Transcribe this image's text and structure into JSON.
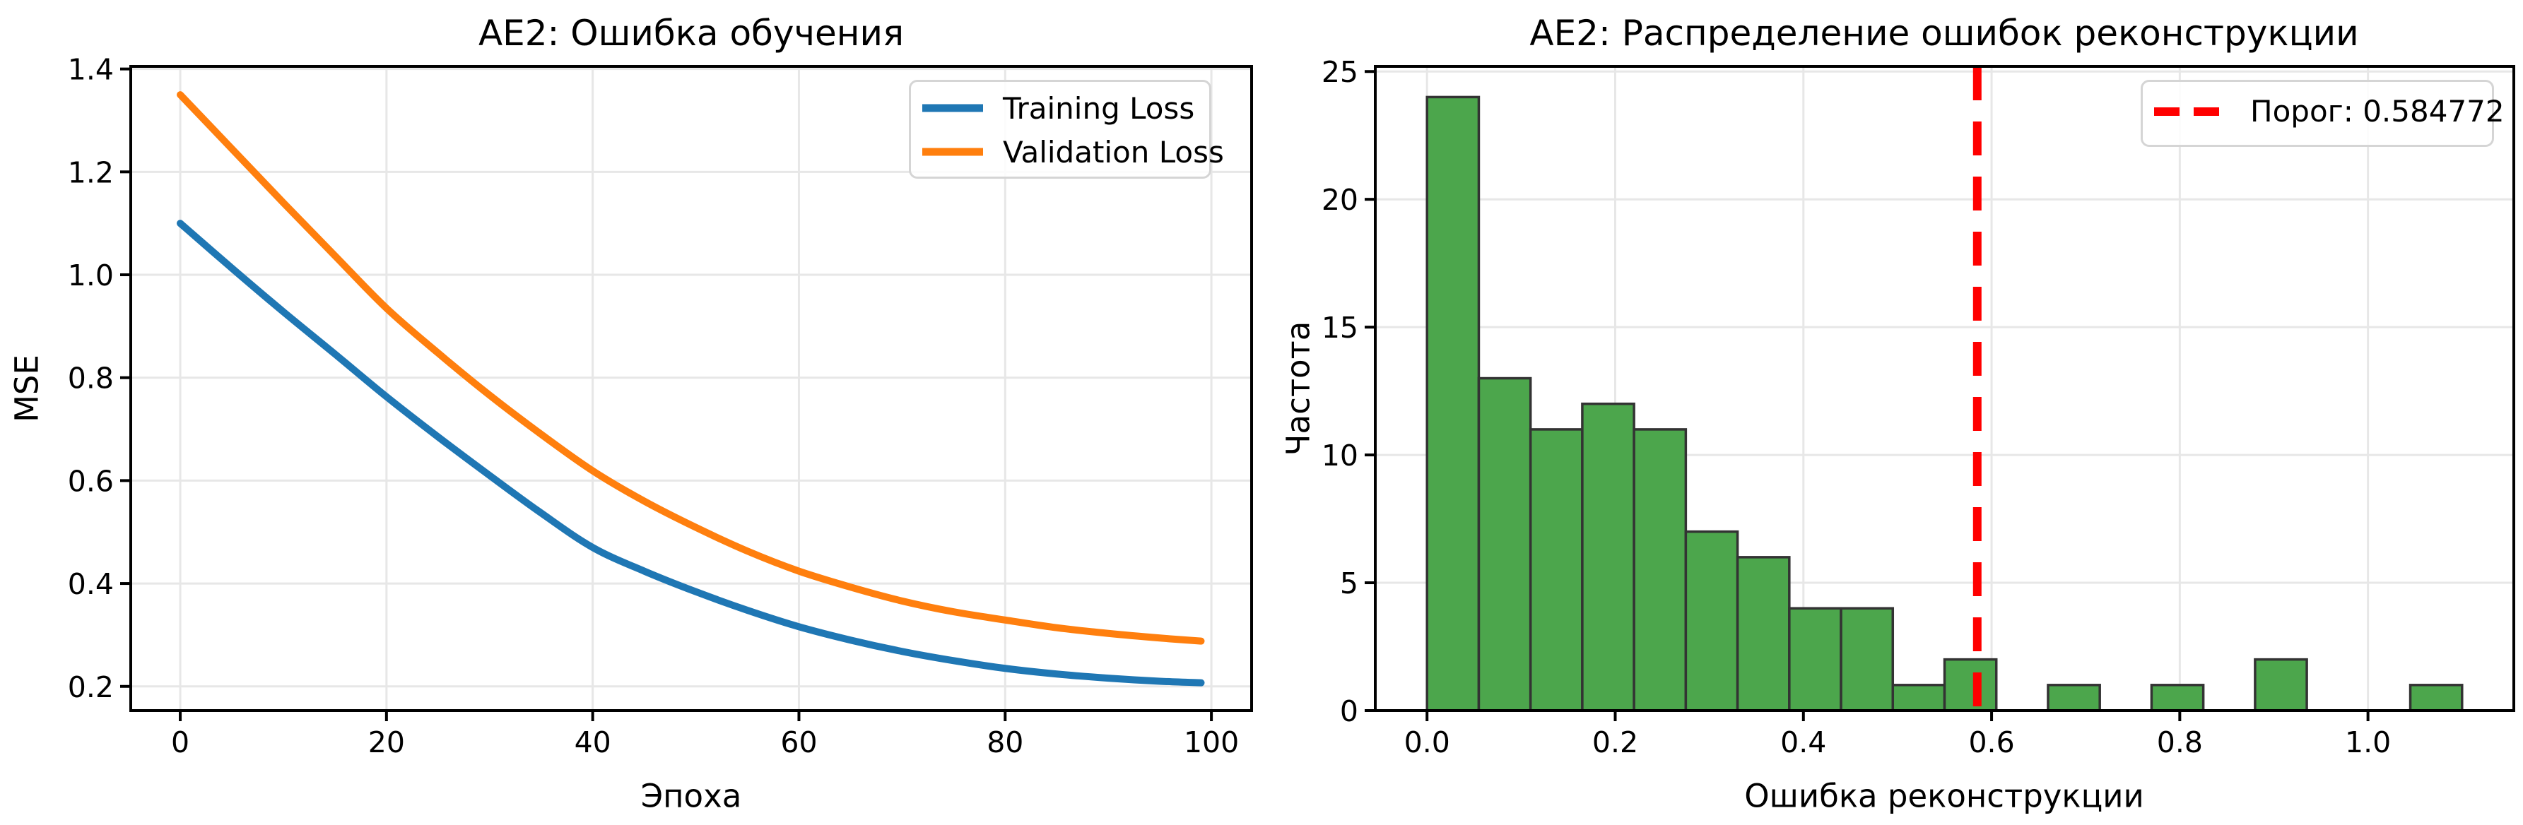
{
  "page": {
    "background": "#ffffff"
  },
  "styles": {
    "grid_color": "#e7e7e7",
    "spine_color": "#000000",
    "tick_color": "#000000",
    "text_color": "#000000",
    "legend_border": "#d5d5d5",
    "legend_bg": "#ffffff"
  },
  "chart_data": [
    {
      "type": "line",
      "title": "AE2: Ошибка обучения",
      "xlabel": "Эпоха",
      "ylabel": "MSE",
      "xlim": [
        -4.8,
        103.9
      ],
      "ylim": [
        0.153,
        1.405
      ],
      "xticks": [
        0,
        20,
        40,
        60,
        80,
        100
      ],
      "xtick_decimals": 0,
      "yticks": [
        0.2,
        0.4,
        0.6,
        0.8,
        1.0,
        1.2,
        1.4
      ],
      "ytick_decimals": 1,
      "grid": true,
      "legend_position": "upper right",
      "x": [
        0,
        5,
        10,
        15,
        20,
        25,
        30,
        35,
        40,
        45,
        50,
        55,
        60,
        65,
        70,
        75,
        80,
        85,
        90,
        95,
        99
      ],
      "series": [
        {
          "id": "training-loss",
          "name": "Training Loss",
          "color": "#1f77b4",
          "values": [
            1.1,
            1.013,
            0.928,
            0.846,
            0.763,
            0.685,
            0.61,
            0.537,
            0.47,
            0.424,
            0.384,
            0.348,
            0.316,
            0.29,
            0.268,
            0.25,
            0.235,
            0.224,
            0.216,
            0.21,
            0.207
          ]
        },
        {
          "id": "validation-loss",
          "name": "Validation Loss",
          "color": "#ff7f0e",
          "values": [
            1.35,
            1.245,
            1.14,
            1.037,
            0.935,
            0.848,
            0.766,
            0.69,
            0.619,
            0.56,
            0.509,
            0.463,
            0.424,
            0.393,
            0.366,
            0.345,
            0.329,
            0.314,
            0.303,
            0.294,
            0.288
          ]
        }
      ]
    },
    {
      "type": "histogram",
      "title": "AE2: Распределение ошибок реконструкции",
      "xlabel": "Ошибка реконструкции",
      "ylabel": "Частота",
      "xlim": [
        -0.055,
        1.155
      ],
      "ylim": [
        0,
        25.2
      ],
      "xticks": [
        0.0,
        0.2,
        0.4,
        0.6,
        0.8,
        1.0
      ],
      "xtick_decimals": 1,
      "yticks": [
        0,
        5,
        10,
        15,
        20,
        25
      ],
      "ytick_decimals": 0,
      "grid": true,
      "bin_start": 0.0,
      "bin_width": 0.055,
      "counts": [
        24,
        13,
        11,
        12,
        11,
        7,
        6,
        4,
        4,
        1,
        2,
        0,
        1,
        0,
        1,
        0,
        2,
        0,
        0,
        1
      ],
      "bar_fill": "#4ca64c",
      "bar_edge": "#333333",
      "legend_position": "upper right",
      "threshold": {
        "value": 0.584772,
        "label": "Порог: 0.584772",
        "color": "#ff0000",
        "style": "dashed"
      }
    }
  ]
}
